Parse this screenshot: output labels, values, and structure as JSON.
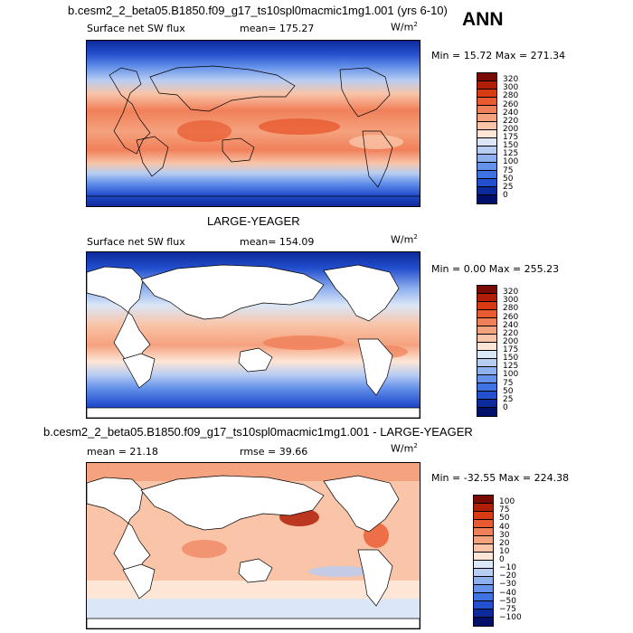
{
  "header": {
    "title": "b.cesm2_2_beta05.B1850.f09_g17_ts10spl0macmic1mg1.001 (yrs 6-10)",
    "season": "ANN"
  },
  "panel1": {
    "label": "Surface net SW flux",
    "mean": "mean= 175.27",
    "units": "W/m",
    "units_sup": "2",
    "minmax": "Min =  15.72 Max = 271.34",
    "levels": [
      "320",
      "300",
      "280",
      "260",
      "240",
      "220",
      "200",
      "175",
      "150",
      "125",
      "100",
      "75",
      "50",
      "25",
      "0"
    ]
  },
  "mid_title": "LARGE-YEAGER",
  "panel2": {
    "label": "Surface net SW flux",
    "mean": "mean= 154.09",
    "units": "W/m",
    "units_sup": "2",
    "minmax": "Min =   0.00 Max = 255.23",
    "levels": [
      "320",
      "300",
      "280",
      "260",
      "240",
      "220",
      "200",
      "175",
      "150",
      "125",
      "100",
      "75",
      "50",
      "25",
      "0"
    ]
  },
  "diff_title": "b.cesm2_2_beta05.B1850.f09_g17_ts10spl0macmic1mg1.001 - LARGE-YEAGER",
  "panel3": {
    "mean": "mean =  21.18",
    "rmse": "rmse =  39.66",
    "units": "W/m",
    "units_sup": "2",
    "minmax": "Min = -32.55 Max = 224.38",
    "levels": [
      "100",
      "75",
      "50",
      "40",
      "30",
      "20",
      "10",
      "0",
      "−10",
      "−20",
      "−30",
      "−40",
      "−50",
      "−75",
      "−100"
    ]
  },
  "colors": {
    "abs_scale": [
      "#7a0a04",
      "#b01e08",
      "#d83a14",
      "#e85a30",
      "#f0805a",
      "#f5a27e",
      "#f9c4a8",
      "#fde6d6",
      "#dbe6f7",
      "#b8cdf2",
      "#8fb0ee",
      "#6592ea",
      "#3f72e2",
      "#2450cf",
      "#0d2a9c",
      "#000f6a"
    ],
    "diff_scale": [
      "#7a0a04",
      "#b01e08",
      "#d83a14",
      "#e85a30",
      "#f0805a",
      "#f5a27e",
      "#f9c4a8",
      "#fde6d6",
      "#dbe6f7",
      "#b8cdf2",
      "#8fb0ee",
      "#6592ea",
      "#3f72e2",
      "#2450cf",
      "#0d2a9c",
      "#000f6a"
    ]
  }
}
